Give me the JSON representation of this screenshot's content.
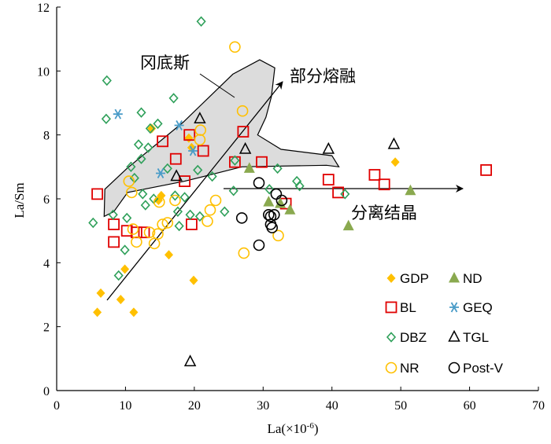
{
  "chart_data": {
    "type": "scatter",
    "title": "",
    "xlabel": "La(×10",
    "xlabel_exp": "-6",
    "xlabel_close": ")",
    "ylabel": "La/Sm",
    "xlim": [
      0,
      70
    ],
    "ylim": [
      0,
      12
    ],
    "xticks": [
      0,
      10,
      20,
      30,
      40,
      50,
      60,
      70
    ],
    "yticks": [
      0,
      2,
      4,
      6,
      8,
      10,
      12
    ],
    "grid": false,
    "legend_position": "bottom-right",
    "series": [
      {
        "name": "GDP",
        "marker": "diamond-filled",
        "color": "#FFC000",
        "points": [
          [
            5.9,
            2.45
          ],
          [
            6.4,
            3.05
          ],
          [
            9.3,
            2.85
          ],
          [
            9.9,
            3.8
          ],
          [
            11.2,
            2.45
          ],
          [
            14.8,
            5.95
          ],
          [
            16.3,
            4.25
          ],
          [
            19.9,
            3.45
          ],
          [
            19.2,
            7.9
          ],
          [
            13.8,
            8.2
          ],
          [
            49.2,
            7.15
          ],
          [
            15.2,
            6.1
          ],
          [
            19.6,
            7.6
          ]
        ]
      },
      {
        "name": "BL",
        "marker": "square-open",
        "color": "#E00000",
        "points": [
          [
            5.9,
            6.15
          ],
          [
            8.3,
            5.2
          ],
          [
            8.3,
            4.65
          ],
          [
            10.2,
            5.0
          ],
          [
            11.6,
            4.95
          ],
          [
            12.7,
            4.95
          ],
          [
            15.4,
            7.8
          ],
          [
            17.3,
            7.25
          ],
          [
            18.6,
            6.55
          ],
          [
            19.3,
            8.0
          ],
          [
            21.3,
            7.5
          ],
          [
            27.1,
            8.1
          ],
          [
            25.9,
            7.15
          ],
          [
            29.8,
            7.15
          ],
          [
            33.3,
            5.85
          ],
          [
            39.5,
            6.6
          ],
          [
            40.9,
            6.2
          ],
          [
            46.2,
            6.75
          ],
          [
            47.6,
            6.45
          ],
          [
            62.4,
            6.9
          ],
          [
            19.6,
            5.2
          ]
        ]
      },
      {
        "name": "DBZ",
        "marker": "diamond-open",
        "color": "#2FA05A",
        "points": [
          [
            5.3,
            5.25
          ],
          [
            7.2,
            8.5
          ],
          [
            7.3,
            9.7
          ],
          [
            8.2,
            5.5
          ],
          [
            9.0,
            3.6
          ],
          [
            9.9,
            4.4
          ],
          [
            10.2,
            5.4
          ],
          [
            10.8,
            7.0
          ],
          [
            11.3,
            6.65
          ],
          [
            11.9,
            7.7
          ],
          [
            12.3,
            8.7
          ],
          [
            12.3,
            7.25
          ],
          [
            12.5,
            6.15
          ],
          [
            12.9,
            5.8
          ],
          [
            13.3,
            7.6
          ],
          [
            14.1,
            6.0
          ],
          [
            14.7,
            8.35
          ],
          [
            17.0,
            9.15
          ],
          [
            17.2,
            6.1
          ],
          [
            17.6,
            5.6
          ],
          [
            17.8,
            5.15
          ],
          [
            18.6,
            6.05
          ],
          [
            19.4,
            5.5
          ],
          [
            20.8,
            5.45
          ],
          [
            20.5,
            6.9
          ],
          [
            21.0,
            11.55
          ],
          [
            22.6,
            6.7
          ],
          [
            24.4,
            5.6
          ],
          [
            25.7,
            6.25
          ],
          [
            25.9,
            7.2
          ],
          [
            30.9,
            6.3
          ],
          [
            32.1,
            6.95
          ],
          [
            34.9,
            6.55
          ],
          [
            35.3,
            6.4
          ],
          [
            41.9,
            6.15
          ],
          [
            16.1,
            6.95
          ],
          [
            13.6,
            8.2
          ]
        ]
      },
      {
        "name": "NR",
        "marker": "circle-open",
        "color": "#FFC000",
        "points": [
          [
            10.5,
            6.55
          ],
          [
            10.9,
            6.2
          ],
          [
            11.1,
            5.05
          ],
          [
            11.6,
            4.65
          ],
          [
            13.5,
            4.95
          ],
          [
            14.2,
            4.6
          ],
          [
            14.9,
            5.9
          ],
          [
            14.7,
            4.9
          ],
          [
            15.4,
            5.2
          ],
          [
            16.1,
            5.25
          ],
          [
            17.2,
            5.95
          ],
          [
            20.8,
            7.85
          ],
          [
            20.9,
            8.15
          ],
          [
            21.9,
            5.3
          ],
          [
            22.3,
            5.65
          ],
          [
            23.1,
            5.95
          ],
          [
            25.9,
            10.75
          ],
          [
            27.2,
            4.3
          ],
          [
            27.0,
            8.75
          ],
          [
            32.2,
            4.85
          ]
        ]
      },
      {
        "name": "ND",
        "marker": "triangle-filled",
        "color": "#8AA94F",
        "points": [
          [
            28.0,
            6.95
          ],
          [
            30.8,
            5.9
          ],
          [
            32.5,
            5.85
          ],
          [
            33.9,
            5.65
          ],
          [
            42.4,
            5.15
          ],
          [
            51.4,
            6.25
          ]
        ]
      },
      {
        "name": "GEQ",
        "marker": "asterisk",
        "color": "#4A9CC8",
        "points": [
          [
            8.9,
            8.65
          ],
          [
            15.1,
            6.8
          ],
          [
            17.8,
            8.3
          ],
          [
            19.8,
            7.5
          ]
        ]
      },
      {
        "name": "TGL",
        "marker": "triangle-open",
        "color": "#000000",
        "points": [
          [
            17.4,
            6.7
          ],
          [
            20.8,
            8.5
          ],
          [
            27.4,
            7.55
          ],
          [
            39.5,
            7.55
          ],
          [
            49.0,
            7.7
          ],
          [
            19.4,
            0.9
          ]
        ]
      },
      {
        "name": "Post-V",
        "marker": "circle-open",
        "color": "#000000",
        "points": [
          [
            26.9,
            5.4
          ],
          [
            29.4,
            6.5
          ],
          [
            29.4,
            4.55
          ],
          [
            30.8,
            5.5
          ],
          [
            31.1,
            5.45
          ],
          [
            31.1,
            5.2
          ],
          [
            31.3,
            5.1
          ],
          [
            31.9,
            6.15
          ],
          [
            32.7,
            5.95
          ],
          [
            31.6,
            5.5
          ]
        ]
      }
    ],
    "annotations": [
      {
        "label": "冈底斯",
        "kind": "text-with-leader"
      },
      {
        "label": "部分熔融",
        "kind": "arrow-trend"
      },
      {
        "label": "分离结晶",
        "kind": "arrow-trend"
      }
    ],
    "regions": [
      {
        "name": "冈底斯-field",
        "fill": "#DCDCDC",
        "outline": [
          [
            6.9,
            5.45
          ],
          [
            7.0,
            6.3
          ],
          [
            10.2,
            6.95
          ],
          [
            18.4,
            8.4
          ],
          [
            25.6,
            9.9
          ],
          [
            29.5,
            10.35
          ],
          [
            31.7,
            10.1
          ],
          [
            31.2,
            9.2
          ],
          [
            30.4,
            8.55
          ],
          [
            29.2,
            8.0
          ],
          [
            32.6,
            7.55
          ],
          [
            40.0,
            7.35
          ],
          [
            41.0,
            7.0
          ],
          [
            39.2,
            7.05
          ],
          [
            26.9,
            7.0
          ],
          [
            18.6,
            6.55
          ],
          [
            10.3,
            6.2
          ],
          [
            8.3,
            5.6
          ]
        ]
      }
    ],
    "legend": {
      "entries": [
        "GDP",
        "ND",
        "BL",
        "GEQ",
        "DBZ",
        "TGL",
        "NR",
        "Post-V"
      ]
    }
  }
}
